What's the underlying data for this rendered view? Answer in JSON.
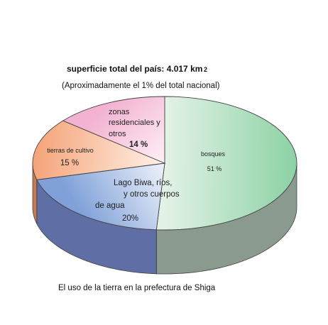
{
  "chart_data": {
    "type": "pie",
    "title": "superficie total del país: 4.017 km",
    "title_superscript": "2",
    "subtitle": "(Aproximadamente el 1% del total nacional)",
    "caption": "El uso de la tierra en la prefectura de Shiga",
    "three_d": true,
    "slices": [
      {
        "label_lines": [
          "bosques"
        ],
        "value_label": "51 %",
        "value": 51,
        "color_light": "#e3f2e6",
        "color_dark": "#8cd2a4",
        "side_color": "#8a9a8e"
      },
      {
        "label_lines": [
          "Lago Biwa, ríos,",
          "y otros cuerpos",
          "de agua"
        ],
        "value_label": "20%",
        "value": 20,
        "color_light": "#eef3fb",
        "color_dark": "#7fa0d8",
        "side_color": "#5f6fa5"
      },
      {
        "label_lines": [
          "tierras de cultivo"
        ],
        "value_label": "15 %",
        "value": 15,
        "color_light": "#fff2e8",
        "color_dark": "#f5a47a",
        "side_color": "#c57a55"
      },
      {
        "label_lines": [
          "zonas",
          "residenciales y",
          "otros"
        ],
        "value_label": "14 %",
        "value": 14,
        "color_light": "#fff0f7",
        "color_dark": "#f2b2d0",
        "side_color": "#c28ea6"
      }
    ]
  }
}
